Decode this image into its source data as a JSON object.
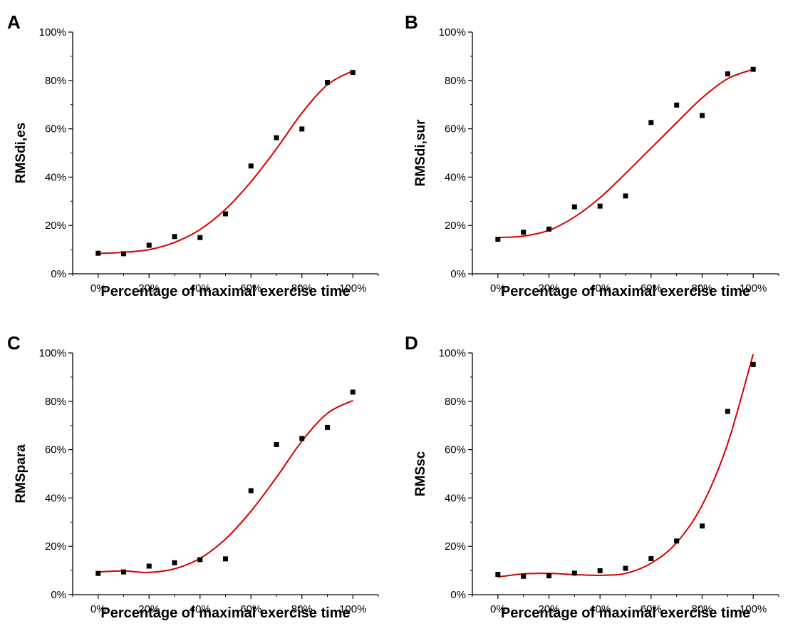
{
  "colors": {
    "fit_curve": "#d40000",
    "points": "#000000",
    "axis": "#000000"
  },
  "chart_data": [
    {
      "panel": "A",
      "type": "scatter",
      "xlabel": "Percentage of maximal exercise time",
      "ylabel": "RMSdi,es",
      "x_ticks": [
        "0%",
        "20%",
        "40%",
        "60%",
        "80%",
        "100%"
      ],
      "y_ticks": [
        "0%",
        "20%",
        "40%",
        "60%",
        "80%",
        "100%"
      ],
      "xlim": [
        -10,
        110
      ],
      "ylim": [
        0,
        100
      ],
      "x": [
        0,
        10,
        20,
        30,
        40,
        50,
        60,
        70,
        80,
        90,
        100
      ],
      "y": [
        8.5,
        8.3,
        11.8,
        15.4,
        15.0,
        24.8,
        44.6,
        56.3,
        59.9,
        79.2,
        83.3
      ],
      "fit": [
        8.4,
        8.9,
        10.0,
        13.0,
        18.3,
        26.7,
        38.1,
        51.7,
        66.5,
        78.2,
        84.0
      ]
    },
    {
      "panel": "B",
      "type": "scatter",
      "xlabel": "Percentage of maximal exercise time",
      "ylabel": "RMSdi,sur",
      "x_ticks": [
        "0%",
        "20%",
        "40%",
        "60%",
        "80%",
        "100%"
      ],
      "y_ticks": [
        "0%",
        "20%",
        "40%",
        "60%",
        "80%",
        "100%"
      ],
      "xlim": [
        -10,
        110
      ],
      "ylim": [
        0,
        100
      ],
      "x": [
        0,
        10,
        20,
        30,
        40,
        50,
        60,
        70,
        80,
        90,
        100
      ],
      "y": [
        14.3,
        17.2,
        18.5,
        27.7,
        28.0,
        32.2,
        62.6,
        69.8,
        65.5,
        82.7,
        84.6
      ],
      "fit": [
        15.0,
        15.6,
        18.0,
        23.5,
        31.5,
        41.5,
        52.0,
        62.5,
        72.8,
        80.7,
        84.6
      ]
    },
    {
      "panel": "C",
      "type": "scatter",
      "xlabel": "Percentage of maximal exercise time",
      "ylabel": "RMSpara",
      "x_ticks": [
        "0%",
        "20%",
        "40%",
        "60%",
        "80%",
        "100%"
      ],
      "y_ticks": [
        "0%",
        "20%",
        "40%",
        "60%",
        "80%",
        "100%"
      ],
      "xlim": [
        -10,
        110
      ],
      "ylim": [
        0,
        100
      ],
      "x": [
        0,
        10,
        20,
        30,
        40,
        50,
        60,
        70,
        80,
        90,
        100
      ],
      "y": [
        8.8,
        9.4,
        11.8,
        13.2,
        14.5,
        14.8,
        43.0,
        62.1,
        64.6,
        69.2,
        83.8
      ],
      "fit": [
        9.4,
        9.8,
        9.2,
        10.7,
        15.0,
        23.0,
        34.5,
        48.5,
        63.5,
        75.0,
        80.3
      ]
    },
    {
      "panel": "D",
      "type": "scatter",
      "xlabel": "Percentage of maximal exercise time",
      "ylabel": "RMSsc",
      "x_ticks": [
        "0%",
        "20%",
        "40%",
        "60%",
        "80%",
        "100%"
      ],
      "y_ticks": [
        "0%",
        "20%",
        "40%",
        "60%",
        "80%",
        "100%"
      ],
      "xlim": [
        -10,
        110
      ],
      "ylim": [
        0,
        100
      ],
      "x": [
        0,
        10,
        20,
        30,
        40,
        50,
        60,
        70,
        80,
        90,
        100
      ],
      "y": [
        8.4,
        7.6,
        7.8,
        8.9,
        9.9,
        10.9,
        14.9,
        22.2,
        28.4,
        75.8,
        95.2
      ],
      "fit": [
        7.3,
        8.6,
        8.8,
        8.3,
        8.0,
        8.8,
        13.0,
        21.5,
        37.0,
        62.5,
        99.5
      ]
    }
  ]
}
